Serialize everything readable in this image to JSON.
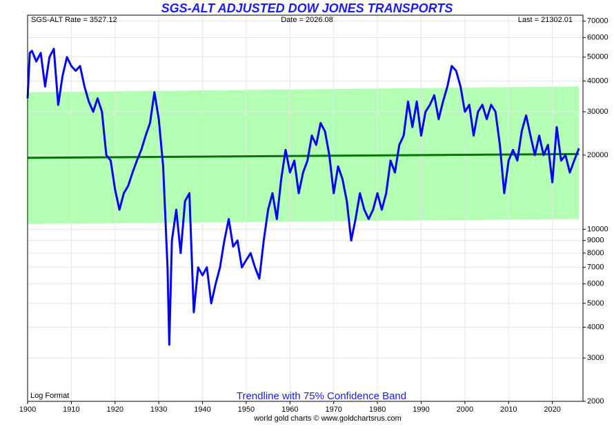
{
  "chart_data": {
    "type": "line",
    "title": "SGS-ALT ADJUSTED DOW JONES TRANSPORTS",
    "header_left": "SGS-ALT Rate = 3527.12",
    "header_center": "Date = 2026.08",
    "header_right": "Last = 21302.01",
    "corner_note": "Log Format",
    "annotation": "Trendline with 75% Confidence Band",
    "footer": "world gold charts © www.goldchartsrus.com",
    "log_scale": true,
    "grid": true,
    "xlim": [
      1900,
      2027
    ],
    "ylim": [
      2000,
      74000
    ],
    "xticks": [
      1900,
      1910,
      1920,
      1930,
      1940,
      1950,
      1960,
      1970,
      1980,
      1990,
      2000,
      2010,
      2020
    ],
    "yticks": [
      2000,
      3000,
      4000,
      5000,
      6000,
      7000,
      8000,
      9000,
      10000,
      20000,
      30000,
      40000,
      50000,
      60000,
      70000
    ],
    "band": {
      "color": "#b3ffb3",
      "x": [
        1900,
        2026.08
      ],
      "lower": [
        10500,
        11000
      ],
      "upper": [
        36000,
        38000
      ]
    },
    "trendline": {
      "color": "#007700",
      "x": [
        1900,
        2026.08
      ],
      "values": [
        19500,
        20200
      ]
    },
    "series": [
      {
        "color": "#0000ff",
        "x": [
          1900,
          1900.5,
          1901,
          1902,
          1903,
          1904,
          1905,
          1906,
          1907,
          1908,
          1909,
          1910,
          1911,
          1912,
          1913,
          1914,
          1915,
          1916,
          1917,
          1918,
          1919,
          1920,
          1921,
          1922,
          1923,
          1924,
          1925,
          1926,
          1927,
          1928,
          1929,
          1930,
          1931,
          1932,
          1932.4,
          1933,
          1934,
          1935,
          1936,
          1937,
          1938,
          1939,
          1940,
          1941,
          1942,
          1943,
          1944,
          1945,
          1946,
          1947,
          1948,
          1949,
          1950,
          1951,
          1952,
          1953,
          1954,
          1955,
          1956,
          1957,
          1958,
          1959,
          1960,
          1961,
          1962,
          1963,
          1964,
          1965,
          1966,
          1967,
          1968,
          1969,
          1970,
          1971,
          1972,
          1973,
          1974,
          1975,
          1976,
          1977,
          1978,
          1979,
          1980,
          1981,
          1982,
          1983,
          1984,
          1985,
          1986,
          1987,
          1988,
          1989,
          1990,
          1991,
          1992,
          1993,
          1994,
          1995,
          1996,
          1997,
          1998,
          1999,
          2000,
          2001,
          2002,
          2003,
          2004,
          2005,
          2006,
          2007,
          2008,
          2009,
          2010,
          2011,
          2012,
          2013,
          2014,
          2015,
          2016,
          2017,
          2018,
          2019,
          2020,
          2021,
          2022,
          2023,
          2024,
          2025,
          2026.08
        ],
        "values": [
          34000,
          52000,
          53000,
          48000,
          52000,
          38000,
          50000,
          54000,
          32000,
          42000,
          50000,
          46000,
          44000,
          46000,
          38000,
          33000,
          30000,
          34000,
          30000,
          20000,
          19000,
          14500,
          12000,
          14000,
          15000,
          17000,
          19000,
          21000,
          24000,
          27000,
          36000,
          28000,
          18000,
          7000,
          3400,
          9000,
          12000,
          8000,
          13000,
          14000,
          4600,
          7000,
          6500,
          7000,
          5000,
          6000,
          7000,
          9000,
          11000,
          8500,
          9000,
          7000,
          7500,
          8000,
          7000,
          6300,
          9000,
          12000,
          14000,
          11000,
          16000,
          21000,
          17000,
          19000,
          14000,
          17000,
          19000,
          24000,
          22000,
          27000,
          25000,
          20000,
          14000,
          18000,
          16000,
          13000,
          9000,
          11000,
          14000,
          12000,
          11000,
          12000,
          14000,
          12000,
          14000,
          19000,
          17000,
          22000,
          24000,
          33000,
          26000,
          33000,
          24000,
          30000,
          32000,
          35000,
          28000,
          33000,
          38000,
          46000,
          44000,
          38000,
          30000,
          32000,
          24000,
          30000,
          32000,
          28000,
          32000,
          30000,
          22000,
          14000,
          19000,
          21000,
          19000,
          25000,
          29000,
          24000,
          20000,
          24000,
          20000,
          22000,
          15500,
          26000,
          19000,
          20000,
          17000,
          19000,
          21302
        ]
      }
    ]
  }
}
